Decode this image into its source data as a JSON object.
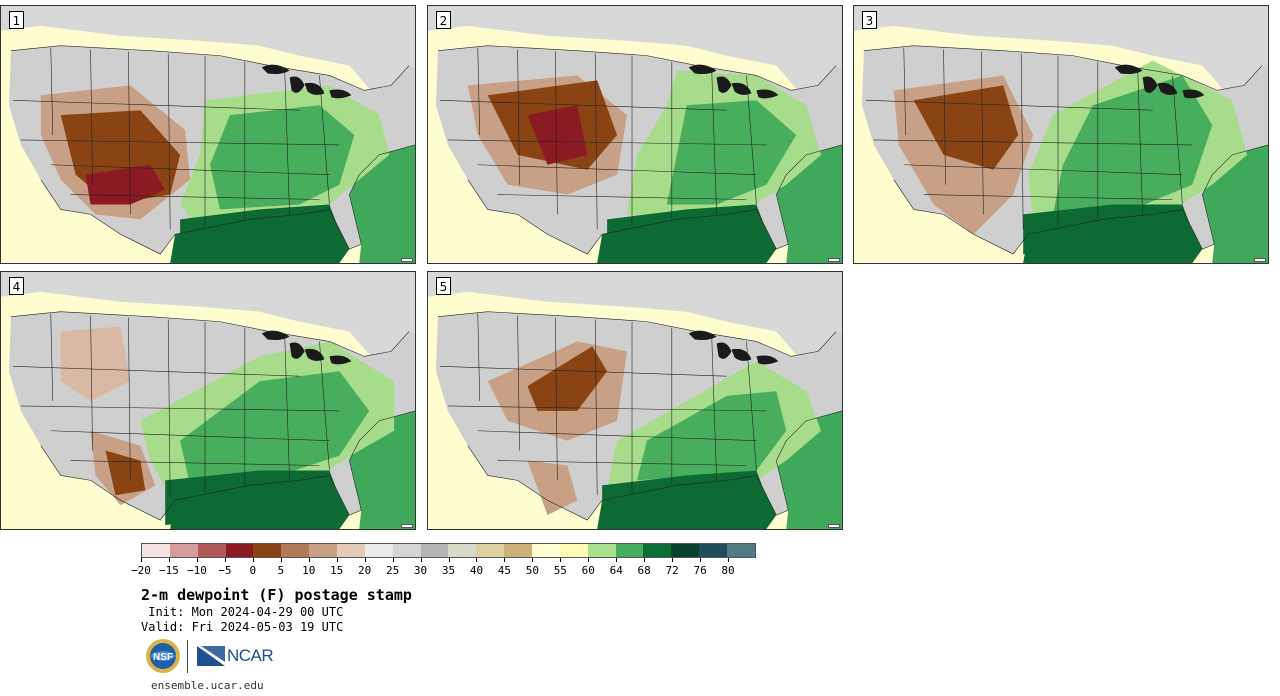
{
  "panels": [
    {
      "number": "1",
      "dry_center": "southwest-new-mexico",
      "moist_extent": "broad"
    },
    {
      "number": "2",
      "dry_center": "colorado",
      "moist_extent": "broad"
    },
    {
      "number": "3",
      "dry_center": "colorado-new-mexico",
      "moist_extent": "broad"
    },
    {
      "number": "4",
      "dry_center": "utah-weak",
      "moist_extent": "broad"
    },
    {
      "number": "5",
      "dry_center": "colorado-kansas",
      "moist_extent": "moderate"
    }
  ],
  "colorbar": {
    "colors": [
      "#f4e3e3",
      "#d59d9d",
      "#b05a5a",
      "#8b1a22",
      "#8a4414",
      "#b07a58",
      "#c9a083",
      "#e4cab6",
      "#eaeaea",
      "#d5d5d5",
      "#b5b5b5",
      "#d9d9cc",
      "#e0cfa2",
      "#cdb278",
      "#fefed2",
      "#fcfcb4",
      "#a8e08c",
      "#44ac5c",
      "#0d6e34",
      "#07402c",
      "#1e4c5a",
      "#4e7c82"
    ],
    "tick_labels": [
      "−20",
      "−15",
      "−10",
      "−5",
      "0",
      "5",
      "10",
      "15",
      "20",
      "25",
      "30",
      "35",
      "40",
      "45",
      "50",
      "55",
      "60",
      "64",
      "68",
      "72",
      "76",
      "80"
    ]
  },
  "title": "2-m dewpoint (F) postage stamp",
  "init_line": " Init: Mon 2024-04-29 00 UTC",
  "valid_line": "Valid: Fri 2024-05-03 19 UTC",
  "logo": {
    "ncar_text": "NCAR",
    "nsf_text": "NSF"
  },
  "site_url": "ensemble.ucar.edu"
}
